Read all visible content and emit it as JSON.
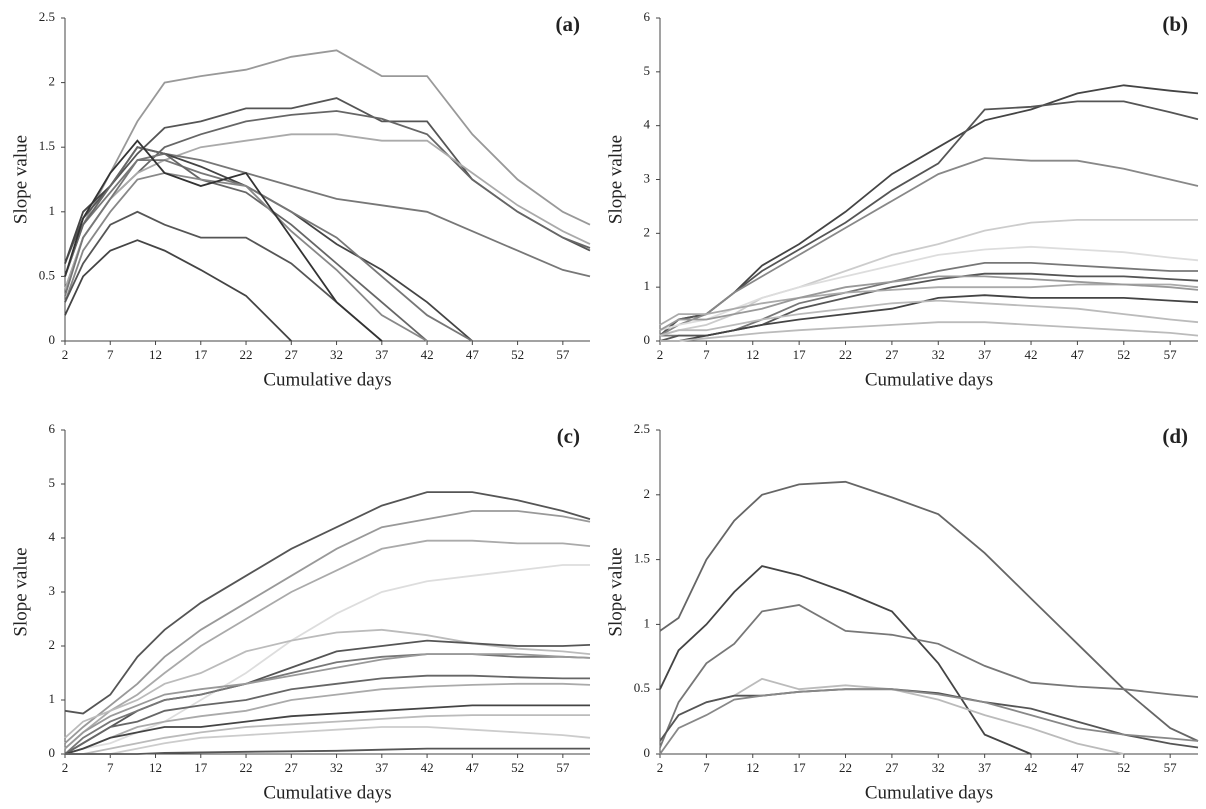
{
  "chart_data": [
    {
      "type": "line",
      "title": "(a)",
      "x_label": "Cumulative days",
      "y_label": "Slope value",
      "x": [
        2,
        4,
        7,
        10,
        13,
        17,
        22,
        27,
        32,
        37,
        42,
        47,
        52,
        57,
        60
      ],
      "xlim": [
        2,
        60
      ],
      "ylim": [
        0,
        2.5
      ],
      "xticks": [
        2,
        7,
        12,
        17,
        22,
        27,
        32,
        37,
        42,
        47,
        52,
        57
      ],
      "yticks": [
        0,
        0.5,
        1,
        1.5,
        2,
        2.5
      ],
      "series": [
        {
          "color": "#999999",
          "values": [
            0.5,
            0.9,
            1.3,
            1.7,
            2.0,
            2.05,
            2.1,
            2.2,
            2.25,
            2.05,
            2.05,
            1.6,
            1.25,
            1.0,
            0.9
          ]
        },
        {
          "color": "#555555",
          "values": [
            0.6,
            0.95,
            1.2,
            1.45,
            1.65,
            1.7,
            1.8,
            1.8,
            1.88,
            1.7,
            1.7,
            1.25,
            1.0,
            0.8,
            0.7
          ]
        },
        {
          "color": "#666666",
          "values": [
            0.4,
            0.8,
            1.1,
            1.3,
            1.5,
            1.6,
            1.7,
            1.75,
            1.78,
            1.72,
            1.6,
            1.25,
            1.0,
            0.8,
            0.72
          ]
        },
        {
          "color": "#aaaaaa",
          "values": [
            0.4,
            0.8,
            1.1,
            1.3,
            1.4,
            1.5,
            1.55,
            1.6,
            1.6,
            1.55,
            1.55,
            1.3,
            1.05,
            0.85,
            0.75
          ]
        },
        {
          "color": "#777777",
          "values": [
            0.35,
            0.8,
            1.1,
            1.4,
            1.45,
            1.4,
            1.3,
            1.2,
            1.1,
            1.05,
            1.0,
            0.85,
            0.7,
            0.55,
            0.5
          ]
        },
        {
          "color": "#444444",
          "values": [
            0.6,
            1.0,
            1.2,
            1.5,
            1.45,
            1.35,
            1.2,
            1.0,
            0.75,
            0.55,
            0.3,
            0,
            null,
            null,
            null
          ]
        },
        {
          "color": "#777777",
          "values": [
            0.5,
            0.9,
            1.15,
            1.4,
            1.4,
            1.3,
            1.2,
            1.0,
            0.8,
            0.5,
            0.2,
            0,
            null,
            null,
            null
          ]
        },
        {
          "color": "#666666",
          "values": [
            0.5,
            0.9,
            1.2,
            1.5,
            1.45,
            1.25,
            1.15,
            0.9,
            0.6,
            0.3,
            0,
            null,
            null,
            null,
            null
          ]
        },
        {
          "color": "#888888",
          "values": [
            0.3,
            0.7,
            1.0,
            1.25,
            1.3,
            1.25,
            1.2,
            0.85,
            0.55,
            0.2,
            0,
            null,
            null,
            null,
            null
          ]
        },
        {
          "color": "#555555",
          "values": [
            0.3,
            0.6,
            0.9,
            1.0,
            0.9,
            0.8,
            0.8,
            0.6,
            0.3,
            0,
            null,
            null,
            null,
            null,
            null
          ]
        },
        {
          "color": "#444444",
          "values": [
            0.2,
            0.5,
            0.7,
            0.78,
            0.7,
            0.55,
            0.35,
            0,
            null,
            null,
            null,
            null,
            null,
            null,
            null
          ]
        },
        {
          "color": "#333333",
          "values": [
            0.5,
            0.95,
            1.3,
            1.55,
            1.3,
            1.2,
            1.3,
            0.8,
            0.3,
            0,
            null,
            null,
            null,
            null,
            null
          ]
        }
      ]
    },
    {
      "type": "line",
      "title": "(b)",
      "x_label": "Cumulative days",
      "y_label": "Slope value",
      "x": [
        2,
        4,
        7,
        10,
        13,
        17,
        22,
        27,
        32,
        37,
        42,
        47,
        52,
        57,
        60
      ],
      "xlim": [
        2,
        60
      ],
      "ylim": [
        0,
        6
      ],
      "xticks": [
        2,
        7,
        12,
        17,
        22,
        27,
        32,
        37,
        42,
        47,
        52,
        57
      ],
      "yticks": [
        0,
        1,
        2,
        3,
        4,
        5,
        6
      ],
      "series": [
        {
          "color": "#444444",
          "values": [
            0.1,
            0.4,
            0.5,
            0.9,
            1.4,
            1.8,
            2.4,
            3.1,
            3.6,
            4.1,
            4.3,
            4.6,
            4.75,
            4.65,
            4.6
          ]
        },
        {
          "color": "#555555",
          "values": [
            0.1,
            0.4,
            0.5,
            0.9,
            1.3,
            1.7,
            2.2,
            2.8,
            3.3,
            4.3,
            4.35,
            4.45,
            4.45,
            4.25,
            4.12
          ]
        },
        {
          "color": "#888888",
          "values": [
            0.1,
            0.3,
            0.5,
            0.9,
            1.2,
            1.6,
            2.1,
            2.6,
            3.1,
            3.4,
            3.35,
            3.35,
            3.2,
            3.0,
            2.88
          ]
        },
        {
          "color": "#cccccc",
          "values": [
            0.1,
            0.2,
            0.3,
            0.5,
            0.8,
            1.0,
            1.3,
            1.6,
            1.8,
            2.05,
            2.2,
            2.25,
            2.25,
            2.25,
            2.25
          ]
        },
        {
          "color": "#dddddd",
          "values": [
            0.2,
            0.3,
            0.4,
            0.6,
            0.8,
            1.0,
            1.2,
            1.4,
            1.6,
            1.7,
            1.75,
            1.7,
            1.65,
            1.55,
            1.5
          ]
        },
        {
          "color": "#777777",
          "values": [
            0.1,
            0.1,
            0.1,
            0.2,
            0.4,
            0.7,
            0.9,
            1.1,
            1.3,
            1.45,
            1.45,
            1.4,
            1.35,
            1.3,
            1.3
          ]
        },
        {
          "color": "#555555",
          "values": [
            0.0,
            0.1,
            0.1,
            0.2,
            0.3,
            0.6,
            0.8,
            1.0,
            1.15,
            1.25,
            1.25,
            1.2,
            1.2,
            1.15,
            1.12
          ]
        },
        {
          "color": "#aaaaaa",
          "values": [
            0.3,
            0.5,
            0.5,
            0.6,
            0.7,
            0.8,
            0.9,
            0.95,
            1.0,
            1.0,
            1.0,
            1.05,
            1.05,
            1.05,
            1.0
          ]
        },
        {
          "color": "#444444",
          "values": [
            0.0,
            0.0,
            0.1,
            0.2,
            0.3,
            0.4,
            0.5,
            0.6,
            0.8,
            0.85,
            0.8,
            0.8,
            0.8,
            0.75,
            0.72
          ]
        },
        {
          "color": "#bbbbbb",
          "values": [
            0.1,
            0.2,
            0.2,
            0.3,
            0.4,
            0.5,
            0.6,
            0.7,
            0.75,
            0.7,
            0.65,
            0.6,
            0.5,
            0.4,
            0.35
          ]
        },
        {
          "color": "#bbbbbb",
          "values": [
            0.0,
            0.0,
            0.05,
            0.1,
            0.15,
            0.2,
            0.25,
            0.3,
            0.35,
            0.35,
            0.3,
            0.25,
            0.2,
            0.15,
            0.1
          ]
        },
        {
          "color": "#999999",
          "values": [
            0.2,
            0.4,
            0.4,
            0.5,
            0.6,
            0.8,
            1.0,
            1.1,
            1.2,
            1.2,
            1.15,
            1.1,
            1.05,
            1.0,
            0.95
          ]
        }
      ]
    },
    {
      "type": "line",
      "title": "(c)",
      "x_label": "Cumulative days",
      "y_label": "Slope value",
      "x": [
        2,
        4,
        7,
        10,
        13,
        17,
        22,
        27,
        32,
        37,
        42,
        47,
        52,
        57,
        60
      ],
      "xlim": [
        2,
        60
      ],
      "ylim": [
        0,
        6
      ],
      "xticks": [
        2,
        7,
        12,
        17,
        22,
        27,
        32,
        37,
        42,
        47,
        52,
        57
      ],
      "yticks": [
        0,
        1,
        2,
        3,
        4,
        5,
        6
      ],
      "series": [
        {
          "color": "#555555",
          "values": [
            0.8,
            0.75,
            1.1,
            1.8,
            2.3,
            2.8,
            3.3,
            3.8,
            4.2,
            4.6,
            4.85,
            4.85,
            4.7,
            4.5,
            4.35
          ]
        },
        {
          "color": "#999999",
          "values": [
            0.2,
            0.5,
            0.9,
            1.3,
            1.8,
            2.3,
            2.8,
            3.3,
            3.8,
            4.2,
            4.35,
            4.5,
            4.5,
            4.4,
            4.3
          ]
        },
        {
          "color": "#aaaaaa",
          "values": [
            0.1,
            0.4,
            0.8,
            1.1,
            1.5,
            2.0,
            2.5,
            3.0,
            3.4,
            3.8,
            3.95,
            3.95,
            3.9,
            3.9,
            3.85
          ]
        },
        {
          "color": "#dddddd",
          "values": [
            0.0,
            0.1,
            0.2,
            0.4,
            0.6,
            1.0,
            1.5,
            2.1,
            2.6,
            3.0,
            3.2,
            3.3,
            3.4,
            3.5,
            3.5
          ]
        },
        {
          "color": "#bbbbbb",
          "values": [
            0.3,
            0.6,
            0.8,
            1.0,
            1.3,
            1.5,
            1.9,
            2.1,
            2.25,
            2.3,
            2.2,
            2.05,
            1.95,
            1.9,
            1.85
          ]
        },
        {
          "color": "#555555",
          "values": [
            0.0,
            0.2,
            0.5,
            0.8,
            1.0,
            1.1,
            1.3,
            1.6,
            1.9,
            2.0,
            2.1,
            2.05,
            2.0,
            2.0,
            2.02
          ]
        },
        {
          "color": "#777777",
          "values": [
            0.0,
            0.3,
            0.6,
            0.8,
            1.0,
            1.1,
            1.3,
            1.5,
            1.7,
            1.8,
            1.85,
            1.85,
            1.8,
            1.8,
            1.78
          ]
        },
        {
          "color": "#999999",
          "values": [
            0.1,
            0.4,
            0.7,
            0.9,
            1.1,
            1.2,
            1.3,
            1.45,
            1.6,
            1.75,
            1.85,
            1.85,
            1.85,
            1.8,
            1.78
          ]
        },
        {
          "color": "#666666",
          "values": [
            0.0,
            0.2,
            0.5,
            0.6,
            0.8,
            0.9,
            1.0,
            1.2,
            1.3,
            1.4,
            1.45,
            1.45,
            1.42,
            1.4,
            1.4
          ]
        },
        {
          "color": "#aaaaaa",
          "values": [
            0.0,
            0.1,
            0.3,
            0.5,
            0.6,
            0.7,
            0.8,
            1.0,
            1.1,
            1.2,
            1.25,
            1.28,
            1.3,
            1.3,
            1.28
          ]
        },
        {
          "color": "#444444",
          "values": [
            0.0,
            0.1,
            0.3,
            0.4,
            0.5,
            0.5,
            0.6,
            0.7,
            0.75,
            0.8,
            0.85,
            0.9,
            0.9,
            0.9,
            0.9
          ]
        },
        {
          "color": "#bbbbbb",
          "values": [
            0.0,
            0.0,
            0.1,
            0.2,
            0.3,
            0.4,
            0.5,
            0.55,
            0.6,
            0.65,
            0.7,
            0.72,
            0.72,
            0.72,
            0.72
          ]
        },
        {
          "color": "#cccccc",
          "values": [
            0.0,
            0.0,
            0.0,
            0.1,
            0.2,
            0.3,
            0.35,
            0.4,
            0.45,
            0.5,
            0.5,
            0.45,
            0.4,
            0.35,
            0.3
          ]
        },
        {
          "color": "#555555",
          "values": [
            0.0,
            0.0,
            0.0,
            0.0,
            0.02,
            0.03,
            0.04,
            0.05,
            0.06,
            0.08,
            0.1,
            0.1,
            0.1,
            0.1,
            0.1
          ]
        }
      ]
    },
    {
      "type": "line",
      "title": "(d)",
      "x_label": "Cumulative days",
      "y_label": "Slope value",
      "x": [
        2,
        4,
        7,
        10,
        13,
        17,
        22,
        27,
        32,
        37,
        42,
        47,
        52,
        57,
        60
      ],
      "xlim": [
        2,
        60
      ],
      "ylim": [
        0,
        2.5
      ],
      "xticks": [
        2,
        7,
        12,
        17,
        22,
        27,
        32,
        37,
        42,
        47,
        52,
        57
      ],
      "yticks": [
        0,
        0.5,
        1,
        1.5,
        2,
        2.5
      ],
      "series": [
        {
          "color": "#666666",
          "values": [
            0.95,
            1.05,
            1.5,
            1.8,
            2.0,
            2.08,
            2.1,
            1.98,
            1.85,
            1.55,
            1.2,
            0.85,
            0.5,
            0.2,
            0.1
          ]
        },
        {
          "color": "#444444",
          "values": [
            0.5,
            0.8,
            1.0,
            1.25,
            1.45,
            1.38,
            1.25,
            1.1,
            0.7,
            0.15,
            0,
            null,
            null,
            null,
            null
          ]
        },
        {
          "color": "#777777",
          "values": [
            0.05,
            0.4,
            0.7,
            0.85,
            1.1,
            1.15,
            0.95,
            0.92,
            0.85,
            0.68,
            0.55,
            0.52,
            0.5,
            0.46,
            0.44
          ]
        },
        {
          "color": "#bbbbbb",
          "values": [
            0.1,
            0.3,
            0.4,
            0.45,
            0.58,
            0.5,
            0.53,
            0.5,
            0.42,
            0.3,
            0.2,
            0.08,
            0,
            null,
            null
          ]
        },
        {
          "color": "#555555",
          "values": [
            0.1,
            0.3,
            0.4,
            0.45,
            0.45,
            0.48,
            0.5,
            0.5,
            0.47,
            0.4,
            0.35,
            0.25,
            0.15,
            0.08,
            0.05
          ]
        },
        {
          "color": "#888888",
          "values": [
            0.0,
            0.2,
            0.3,
            0.42,
            0.45,
            0.48,
            0.5,
            0.5,
            0.46,
            0.4,
            0.3,
            0.2,
            0.15,
            0.12,
            0.1
          ]
        }
      ]
    }
  ]
}
